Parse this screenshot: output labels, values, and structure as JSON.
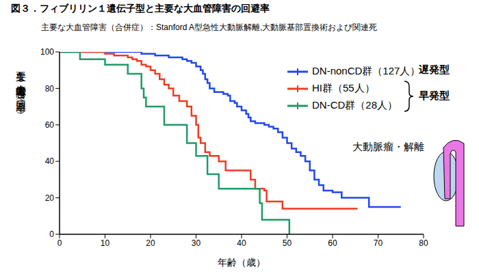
{
  "chart_data": {
    "type": "line",
    "title": "図３．フィブリリン１遺伝子型と主要な大血管障害の回避率",
    "subtitle": "主要な大血管障害（合併症）：Stanford A型急性大動脈解離,大動脈基部置換術および関連死",
    "x_label": "年齢（歳）",
    "y_label": "主要な大血管障害の回避率（%）",
    "xlim": [
      0,
      80
    ],
    "ylim": [
      0,
      100
    ],
    "xticks": [
      0,
      10,
      20,
      30,
      40,
      50,
      60,
      70,
      80
    ],
    "yticks": [
      0,
      20,
      40,
      60,
      80,
      100
    ],
    "grid": false,
    "legend": "upper right",
    "line_style": "step",
    "annotations": {
      "late": "遅発型",
      "early": "早発型",
      "illustration": "大動脈瘤・解離"
    },
    "series": [
      {
        "name": "DN-nonCD群（127人）",
        "color": "#2147f0",
        "x": [
          0,
          18,
          21,
          24,
          27,
          28,
          29,
          30,
          31,
          31.5,
          32,
          32.5,
          33,
          34,
          36,
          37,
          37.5,
          38.5,
          39,
          40,
          41,
          41.5,
          42,
          43,
          45,
          46,
          47,
          48,
          49,
          50,
          51,
          52,
          53,
          54,
          55,
          56,
          57,
          58,
          60,
          62,
          68,
          75
        ],
        "values": [
          100,
          99,
          98,
          97,
          96,
          95,
          94,
          92,
          90,
          88,
          85,
          83,
          80,
          78,
          77,
          76,
          73,
          72,
          70,
          68,
          66,
          64,
          62,
          61,
          60,
          59,
          58,
          56,
          53,
          50,
          47,
          45,
          43,
          40,
          35,
          30,
          27,
          24,
          23,
          20,
          15,
          15
        ]
      },
      {
        "name": "HI群（55人）",
        "color": "#f03a22",
        "x": [
          0,
          10,
          12,
          15,
          16,
          17,
          18,
          19,
          20,
          21,
          22,
          23,
          24,
          25,
          26.3,
          28,
          29,
          30,
          30.5,
          31,
          32,
          33,
          35,
          36.5,
          42,
          43,
          45,
          45.5,
          49,
          65.5
        ],
        "values": [
          100,
          99,
          98,
          97,
          96,
          95,
          93,
          92,
          90,
          88,
          85,
          82,
          80,
          76,
          73,
          70,
          65,
          60,
          53,
          50,
          45,
          43,
          40,
          35,
          30,
          25,
          24,
          18,
          14,
          14
        ]
      },
      {
        "name": "DN-CD群（28人）",
        "color": "#1e9a66",
        "x": [
          0,
          4.5,
          10,
          15,
          18,
          18.5,
          19,
          23,
          28,
          30,
          32.5,
          35,
          44,
          44.5,
          50.5
        ],
        "values": [
          100,
          96,
          93,
          88,
          80,
          75,
          70,
          60,
          50,
          43,
          33,
          25,
          17,
          8,
          0
        ]
      }
    ]
  }
}
